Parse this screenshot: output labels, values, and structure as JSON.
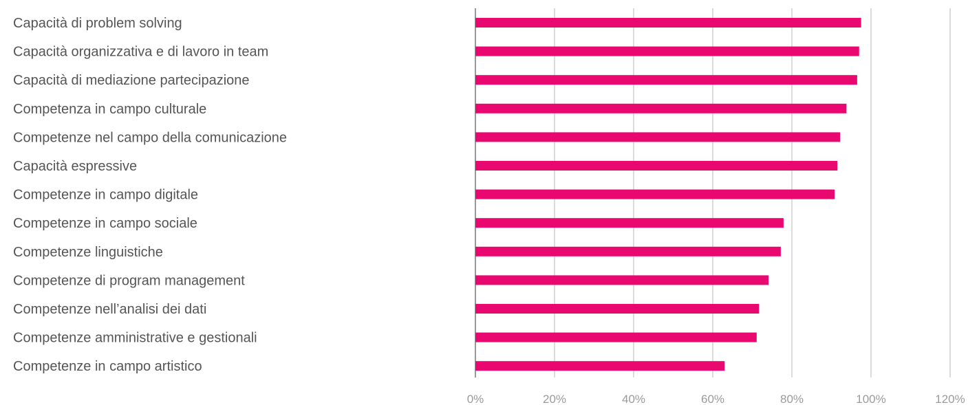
{
  "chart_data": {
    "type": "bar",
    "orientation": "horizontal",
    "title": "",
    "xlabel": "",
    "ylabel": "",
    "categories": [
      "Capacità di problem solving",
      "Capacità organizzativa e di lavoro in team",
      "Capacità di mediazione partecipazione",
      "Competenza in campo culturale",
      "Competenze nel campo della comunicazione",
      "Capacità espressive",
      "Competenze in campo digitale",
      "Competenze in campo sociale",
      "Competenze linguistiche",
      "Competenze di program management",
      "Competenze nell’analisi dei dati",
      "Competenze amministrative e gestionali",
      "Competenze in campo artistico"
    ],
    "values": [
      97.5,
      97.0,
      96.5,
      93.8,
      92.2,
      91.5,
      90.8,
      77.9,
      77.2,
      74.1,
      71.7,
      71.1,
      63.0
    ],
    "xlim": [
      0,
      120
    ],
    "ticks": [
      0,
      20,
      40,
      60,
      80,
      100,
      120
    ],
    "tick_labels": [
      "0%",
      "20%",
      "40%",
      "60%",
      "80%",
      "100%",
      "120%"
    ],
    "grid": "vertical",
    "legend": "none",
    "colors": {
      "bar": "#e8086f",
      "grid": "#cfcfcf",
      "axis": "#999999",
      "label": "#555555",
      "tick": "#9a9a9a"
    }
  }
}
